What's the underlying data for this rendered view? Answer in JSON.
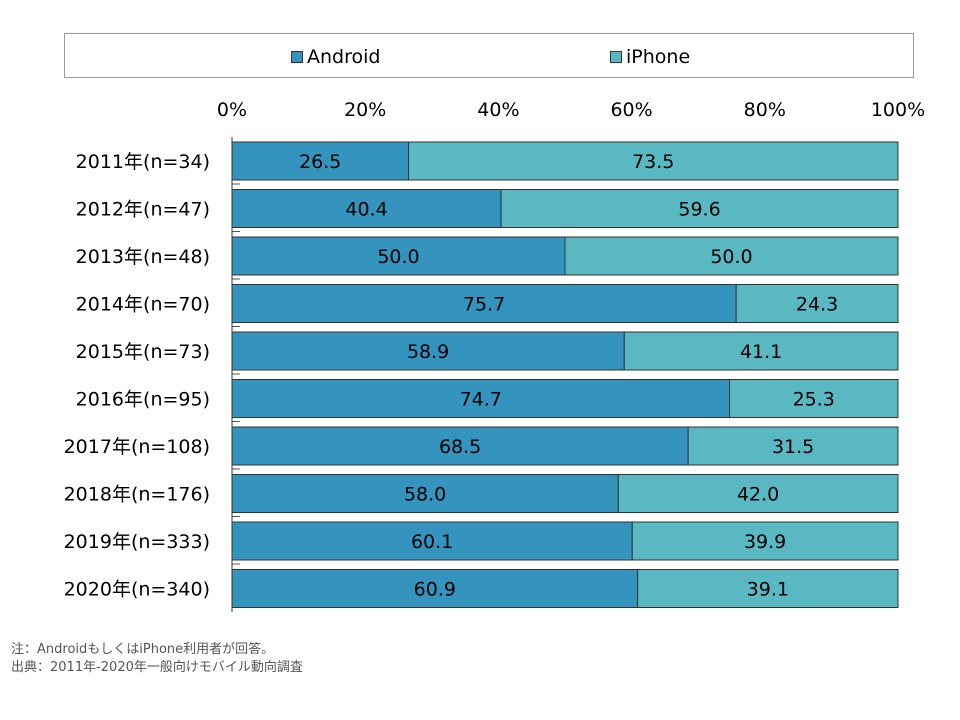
{
  "chart_data": {
    "type": "bar",
    "orientation": "horizontal",
    "stacked": true,
    "categories": [
      "2011年(n=34)",
      "2012年(n=47)",
      "2013年(n=48)",
      "2014年(n=70)",
      "2015年(n=73)",
      "2016年(n=95)",
      "2017年(n=108)",
      "2018年(n=176)",
      "2019年(n=333)",
      "2020年(n=340)"
    ],
    "series": [
      {
        "name": "Android",
        "color": "#3494bd",
        "values": [
          26.5,
          40.4,
          50.0,
          75.7,
          58.9,
          74.7,
          68.5,
          58.0,
          60.1,
          60.9
        ],
        "labels": [
          "26.5",
          "40.4",
          "50.0",
          "75.7",
          "58.9",
          "74.7",
          "68.5",
          "58.0",
          "60.1",
          "60.9"
        ]
      },
      {
        "name": "iPhone",
        "color": "#5ab8c2",
        "values": [
          73.5,
          59.6,
          50.0,
          24.3,
          41.1,
          25.3,
          31.5,
          42.0,
          39.9,
          39.1
        ],
        "labels": [
          "73.5",
          "59.6",
          "50.0",
          "24.3",
          "41.1",
          "25.3",
          "31.5",
          "42.0",
          "39.9",
          "39.1"
        ]
      }
    ],
    "xlim": [
      0,
      100
    ],
    "x_ticks": [
      "0%",
      "20%",
      "40%",
      "60%",
      "80%",
      "100%"
    ],
    "x_tick_values": [
      0,
      20,
      40,
      60,
      80,
      100
    ],
    "x_axis_position": "top",
    "legend_position": "top",
    "grid": false
  },
  "notes": [
    "注：AndroidもしくはiPhone利用者が回答。",
    "出典：2011年-2020年一般向けモバイル動向調査"
  ]
}
